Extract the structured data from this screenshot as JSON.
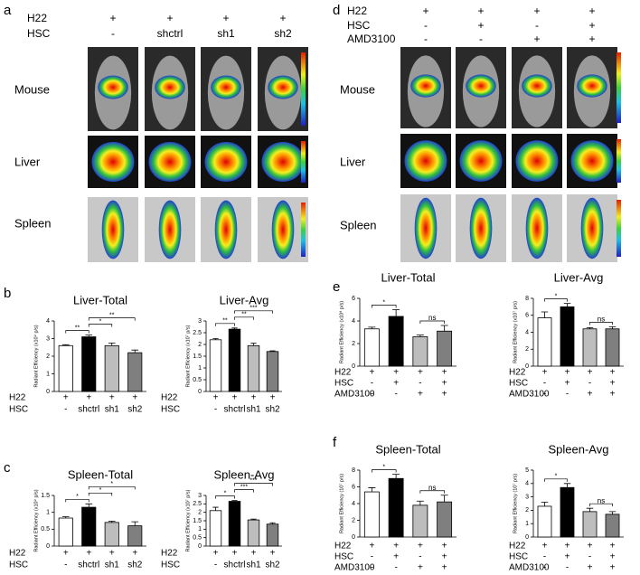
{
  "panel_letters": [
    "a",
    "b",
    "c",
    "d",
    "e",
    "f"
  ],
  "panel_a": {
    "conditions": [
      {
        "label": "H22",
        "values": [
          "+",
          "+",
          "+",
          "+"
        ]
      },
      {
        "label": "HSC",
        "values": [
          "-",
          "shctrl",
          "sh1",
          "sh2"
        ]
      }
    ],
    "rows": [
      "Mouse",
      "Liver",
      "Spleen"
    ]
  },
  "panel_d": {
    "conditions": [
      {
        "label": "H22",
        "values": [
          "+",
          "+",
          "+",
          "+"
        ]
      },
      {
        "label": "HSC",
        "values": [
          "-",
          "+",
          "-",
          "+"
        ]
      },
      {
        "label": "AMD3100",
        "values": [
          "-",
          "-",
          "+",
          "+"
        ]
      }
    ],
    "rows": [
      "Mouse",
      "Liver",
      "Spleen"
    ]
  },
  "chart_data": [
    {
      "type": "bar",
      "title": "Liver-Total",
      "ylabel": "Radiant Efficiency (x10⁹ p/s)",
      "condition_rows": [
        {
          "label": "H22",
          "values": [
            "+",
            "+",
            "+",
            "+"
          ]
        },
        {
          "label": "HSC",
          "values": [
            "-",
            "shctrl",
            "sh1",
            "sh2"
          ]
        }
      ],
      "values": [
        2.6,
        3.1,
        2.6,
        2.2
      ],
      "errors": [
        0.05,
        0.1,
        0.15,
        0.15
      ],
      "colors": [
        "#ffffff",
        "#000000",
        "#bdbdbd",
        "#7f7f7f"
      ],
      "ylim": [
        0,
        4
      ],
      "yticks": [
        0,
        1,
        2,
        3,
        4
      ],
      "significance": [
        {
          "from": 0,
          "to": 1,
          "label": "**"
        },
        {
          "from": 1,
          "to": 2,
          "label": "*"
        },
        {
          "from": 1,
          "to": 3,
          "label": "**"
        }
      ]
    },
    {
      "type": "bar",
      "title": "Liver-Avg",
      "ylabel": "Radiant Efficiency (x10⁷ p/s)",
      "condition_rows": [
        {
          "label": "H22",
          "values": [
            "+",
            "+",
            "+",
            "+"
          ]
        },
        {
          "label": "HSC",
          "values": [
            "-",
            "shctrl",
            "sh1",
            "sh2"
          ]
        }
      ],
      "values": [
        2.2,
        2.65,
        1.95,
        1.7
      ],
      "errors": [
        0.05,
        0.05,
        0.1,
        0.03
      ],
      "colors": [
        "#ffffff",
        "#000000",
        "#bdbdbd",
        "#7f7f7f"
      ],
      "ylim": [
        0,
        3
      ],
      "yticks": [
        0,
        0.5,
        1,
        1.5,
        2,
        2.5,
        3
      ],
      "significance": [
        {
          "from": 0,
          "to": 1,
          "label": "**"
        },
        {
          "from": 1,
          "to": 2,
          "label": "**"
        },
        {
          "from": 1,
          "to": 3,
          "label": "***"
        }
      ]
    },
    {
      "type": "bar",
      "title": "Spleen-Total",
      "ylabel": "Radiant Efficiency (x10⁹ p/s)",
      "condition_rows": [
        {
          "label": "H22",
          "values": [
            "+",
            "+",
            "+",
            "+"
          ]
        },
        {
          "label": "HSC",
          "values": [
            "-",
            "shctrl",
            "sh1",
            "sh2"
          ]
        }
      ],
      "values": [
        0.83,
        1.15,
        0.7,
        0.6
      ],
      "errors": [
        0.04,
        0.1,
        0.04,
        0.12
      ],
      "colors": [
        "#ffffff",
        "#000000",
        "#bdbdbd",
        "#7f7f7f"
      ],
      "ylim": [
        0,
        1.5
      ],
      "yticks": [
        0,
        0.5,
        1,
        1.5
      ],
      "significance": [
        {
          "from": 0,
          "to": 1,
          "label": "*"
        },
        {
          "from": 1,
          "to": 2,
          "label": "*"
        },
        {
          "from": 1,
          "to": 3,
          "label": "*"
        }
      ]
    },
    {
      "type": "bar",
      "title": "Spleen-Avg",
      "ylabel": "Radiant Efficiency (x10⁷ p/s)",
      "condition_rows": [
        {
          "label": "H22",
          "values": [
            "+",
            "+",
            "+",
            "+"
          ]
        },
        {
          "label": "HSC",
          "values": [
            "-",
            "shctrl",
            "sh1",
            "sh2"
          ]
        }
      ],
      "values": [
        2.1,
        2.65,
        1.55,
        1.3
      ],
      "errors": [
        0.2,
        0.05,
        0.05,
        0.08
      ],
      "colors": [
        "#ffffff",
        "#000000",
        "#bdbdbd",
        "#7f7f7f"
      ],
      "ylim": [
        0,
        3
      ],
      "yticks": [
        0,
        0.5,
        1,
        1.5,
        2,
        2.5,
        3
      ],
      "significance": [
        {
          "from": 0,
          "to": 1,
          "label": "*"
        },
        {
          "from": 1,
          "to": 2,
          "label": "***"
        },
        {
          "from": 1,
          "to": 3,
          "label": "***"
        }
      ]
    },
    {
      "type": "bar",
      "title": "Liver-Total",
      "ylabel": "Radiant Efficiency (x10⁸ p/s)",
      "condition_rows": [
        {
          "label": "H22",
          "values": [
            "+",
            "+",
            "+",
            "+"
          ]
        },
        {
          "label": "HSC",
          "values": [
            "-",
            "+",
            "-",
            "+"
          ]
        },
        {
          "label": "AMD3100",
          "values": [
            "-",
            "-",
            "+",
            "+"
          ]
        }
      ],
      "values": [
        3.3,
        4.4,
        2.6,
        3.1
      ],
      "errors": [
        0.15,
        0.6,
        0.15,
        0.5
      ],
      "colors": [
        "#ffffff",
        "#000000",
        "#bdbdbd",
        "#7f7f7f"
      ],
      "ylim": [
        0,
        6
      ],
      "yticks": [
        0,
        2,
        4,
        6
      ],
      "significance": [
        {
          "from": 0,
          "to": 1,
          "label": "*"
        },
        {
          "from": 2,
          "to": 3,
          "label": "ns"
        }
      ]
    },
    {
      "type": "bar",
      "title": "Liver-Avg",
      "ylabel": "Radiant Efficiency (x10⁷ p/s)",
      "condition_rows": [
        {
          "label": "H22",
          "values": [
            "+",
            "+",
            "+",
            "+"
          ]
        },
        {
          "label": "HSC",
          "values": [
            "-",
            "+",
            "-",
            "+"
          ]
        },
        {
          "label": "AMD3100",
          "values": [
            "-",
            "-",
            "+",
            "+"
          ]
        }
      ],
      "values": [
        5.7,
        7.0,
        4.4,
        4.4
      ],
      "errors": [
        0.7,
        0.4,
        0.15,
        0.25
      ],
      "colors": [
        "#ffffff",
        "#000000",
        "#bdbdbd",
        "#7f7f7f"
      ],
      "ylim": [
        0,
        8
      ],
      "yticks": [
        0,
        2,
        4,
        6,
        8
      ],
      "significance": [
        {
          "from": 0,
          "to": 1,
          "label": "*"
        },
        {
          "from": 2,
          "to": 3,
          "label": "ns"
        }
      ]
    },
    {
      "type": "bar",
      "title": "Spleen-Total",
      "ylabel": "Radiant Efficiency (10⁷ p/s)",
      "condition_rows": [
        {
          "label": "H22",
          "values": [
            "+",
            "+",
            "+",
            "+"
          ]
        },
        {
          "label": "HSC",
          "values": [
            "-",
            "+",
            "-",
            "+"
          ]
        },
        {
          "label": "AMD3100",
          "values": [
            "-",
            "-",
            "+",
            "+"
          ]
        }
      ],
      "values": [
        5.4,
        7.0,
        3.8,
        4.2
      ],
      "errors": [
        0.5,
        0.5,
        0.5,
        0.8
      ],
      "colors": [
        "#ffffff",
        "#000000",
        "#bdbdbd",
        "#7f7f7f"
      ],
      "ylim": [
        0,
        8
      ],
      "yticks": [
        0,
        2,
        4,
        6,
        8
      ],
      "significance": [
        {
          "from": 0,
          "to": 1,
          "label": "*"
        },
        {
          "from": 2,
          "to": 3,
          "label": "ns"
        }
      ]
    },
    {
      "type": "bar",
      "title": "Spleen-Avg",
      "ylabel": "Radiant Efficiency (10⁷ p/s)",
      "condition_rows": [
        {
          "label": "H22",
          "values": [
            "+",
            "+",
            "+",
            "+"
          ]
        },
        {
          "label": "HSC",
          "values": [
            "-",
            "+",
            "-",
            "+"
          ]
        },
        {
          "label": "AMD3100",
          "values": [
            "-",
            "-",
            "+",
            "+"
          ]
        }
      ],
      "values": [
        2.3,
        3.7,
        1.9,
        1.7
      ],
      "errors": [
        0.3,
        0.3,
        0.25,
        0.2
      ],
      "colors": [
        "#ffffff",
        "#000000",
        "#bdbdbd",
        "#7f7f7f"
      ],
      "ylim": [
        0,
        5
      ],
      "yticks": [
        0,
        1,
        2,
        3,
        4,
        5
      ],
      "significance": [
        {
          "from": 0,
          "to": 1,
          "label": "*"
        },
        {
          "from": 2,
          "to": 3,
          "label": "ns"
        }
      ]
    }
  ]
}
